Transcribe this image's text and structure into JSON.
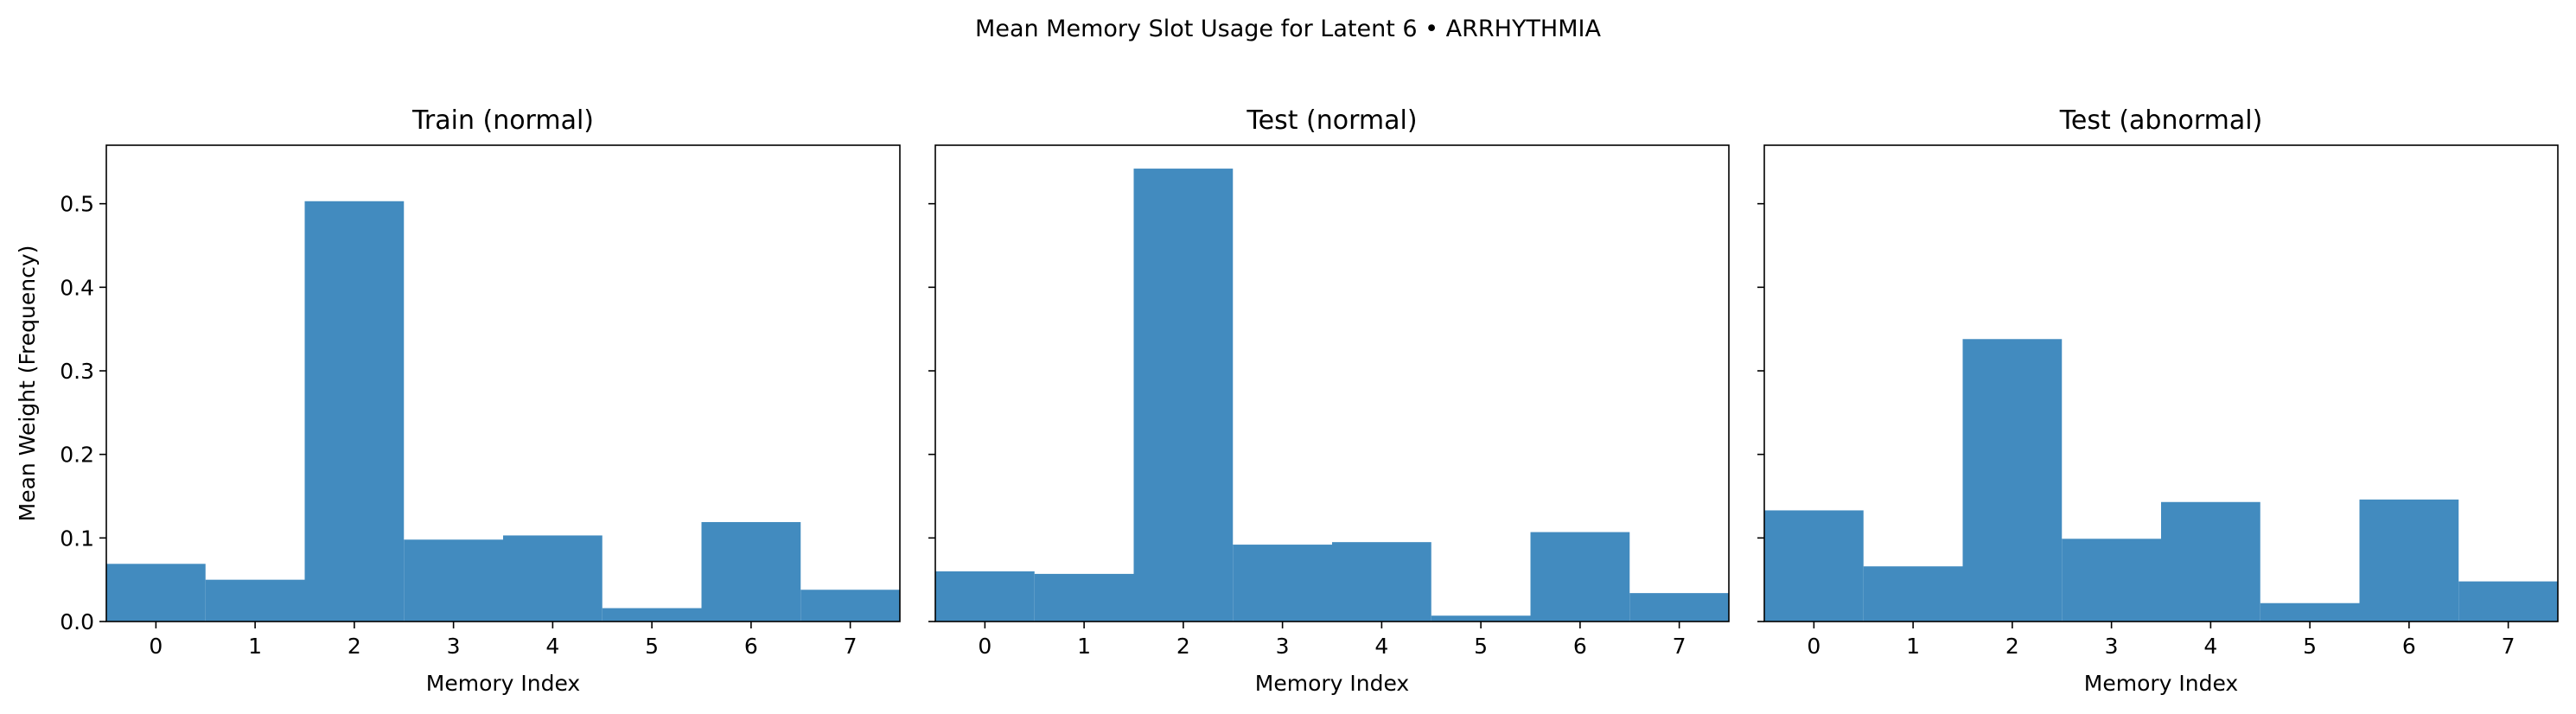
{
  "suptitle": "Mean Memory Slot Usage for Latent 6 • ARRHYTHMIA",
  "chart_data": [
    {
      "type": "bar",
      "title": "Train (normal)",
      "xlabel": "Memory Index",
      "ylabel": "Mean Weight (Frequency)",
      "categories": [
        "0",
        "1",
        "2",
        "3",
        "4",
        "5",
        "6",
        "7"
      ],
      "values": [
        0.069,
        0.05,
        0.503,
        0.098,
        0.103,
        0.016,
        0.119,
        0.038
      ],
      "ylim": [
        0,
        0.57
      ],
      "yticks": [
        "0.0",
        "0.1",
        "0.2",
        "0.3",
        "0.4",
        "0.5"
      ],
      "color": "#428bbf",
      "grid": false
    },
    {
      "type": "bar",
      "title": "Test (normal)",
      "xlabel": "Memory Index",
      "ylabel": "",
      "categories": [
        "0",
        "1",
        "2",
        "3",
        "4",
        "5",
        "6",
        "7"
      ],
      "values": [
        0.06,
        0.057,
        0.542,
        0.092,
        0.095,
        0.007,
        0.107,
        0.034
      ],
      "ylim": [
        0,
        0.57
      ],
      "yticks": [
        "",
        "",
        "",
        "",
        "",
        ""
      ],
      "color": "#428bbf",
      "grid": false
    },
    {
      "type": "bar",
      "title": "Test (abnormal)",
      "xlabel": "Memory Index",
      "ylabel": "",
      "categories": [
        "0",
        "1",
        "2",
        "3",
        "4",
        "5",
        "6",
        "7"
      ],
      "values": [
        0.133,
        0.066,
        0.338,
        0.099,
        0.143,
        0.022,
        0.146,
        0.048
      ],
      "ylim": [
        0,
        0.57
      ],
      "yticks": [
        "",
        "",
        "",
        "",
        "",
        ""
      ],
      "color": "#428bbf",
      "grid": false
    }
  ]
}
